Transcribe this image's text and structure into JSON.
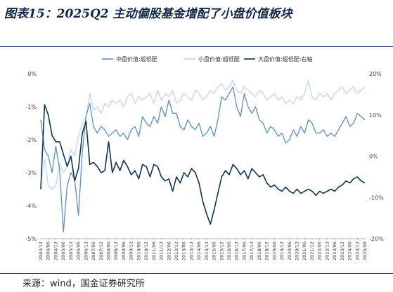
{
  "header": {
    "title": "图表15：2025Q2 主动偏股基金增配了小盘价值板块"
  },
  "footer": {
    "source": "来源：wind，国金证券研究所"
  },
  "colors": {
    "mid": "#5b8fc7",
    "small": "#c3d6ea",
    "large": "#0e3553",
    "rule": "#13294b"
  },
  "chart_data": {
    "type": "line",
    "legend_position": "top-center",
    "grid": false,
    "left_axis": {
      "ylim": [
        -5,
        0
      ],
      "ticks": [
        0,
        -1,
        -2,
        -3,
        -4,
        -5
      ],
      "tick_labels": [
        "0%",
        "-1%",
        "-2%",
        "-3%",
        "-4%",
        "-5%"
      ]
    },
    "right_axis": {
      "ylim": [
        -20,
        20
      ],
      "ticks": [
        20,
        10,
        0,
        -10,
        -20
      ],
      "tick_labels": [
        "20%",
        "10%",
        "0%",
        "-10%",
        "-20%"
      ]
    },
    "x_tick_labels": [
      "2003/12",
      "2004/06",
      "2004/12",
      "2005/06",
      "2005/12",
      "2006/06",
      "2006/12",
      "2007/06",
      "2007/12",
      "2008/06",
      "2008/12",
      "2009/06",
      "2009/12",
      "2010/06",
      "2010/12",
      "2011/06",
      "2011/12",
      "2012/06",
      "2012/12",
      "2013/06",
      "2013/12",
      "2014/06",
      "2014/12",
      "2015/06",
      "2015/12",
      "2016/06",
      "2016/12",
      "2017/06",
      "2017/12",
      "2018/06",
      "2018/12",
      "2019/06",
      "2019/12",
      "2020/06",
      "2020/12",
      "2021/06",
      "2021/12",
      "2022/06",
      "2022/12",
      "2023/06",
      "2023/12",
      "2024/06",
      "2024/12",
      "2025/06"
    ],
    "series": [
      {
        "name": "中盘价值:超低配",
        "axis": "left",
        "values": [
          -1.4,
          -2.3,
          -2.5,
          -3.0,
          -2.2,
          -2.9,
          -4.8,
          -3.4,
          -3.0,
          -3.2,
          -4.3,
          -2.4,
          -1.3,
          -0.9,
          -1.6,
          -1.8,
          -1.6,
          -1.7,
          -1.9,
          -1.8,
          -1.7,
          -1.9,
          -1.8,
          -2.0,
          -1.7,
          -1.6,
          -1.9,
          -1.3,
          -1.5,
          -1.6,
          -1.3,
          -1.5,
          -1.0,
          -1.3,
          -0.8,
          -1.2,
          -1.2,
          -1.6,
          -1.7,
          -1.4,
          -1.6,
          -1.7,
          -1.5,
          -1.9,
          -1.8,
          -1.6,
          -1.9,
          -1.4,
          -0.7,
          -0.8,
          -0.6,
          -0.4,
          -1.0,
          -1.3,
          -0.6,
          -1.0,
          -1.2,
          -1.0,
          -1.4,
          -1.5,
          -1.8,
          -1.6,
          -1.7,
          -1.9,
          -1.8,
          -2.1,
          -2.0,
          -1.7,
          -1.9,
          -1.6,
          -1.8,
          -1.4,
          -1.5,
          -1.8,
          -1.8,
          -1.7,
          -1.9,
          -1.8,
          -1.9,
          -1.7,
          -1.5,
          -1.3,
          -1.6,
          -1.5,
          -1.2,
          -1.3,
          -1.4
        ]
      },
      {
        "name": "小盘价值:超低配",
        "axis": "left",
        "values": [
          -3.3,
          -2.6,
          -3.4,
          -3.5,
          -3.4,
          -2.7,
          -3.0,
          -2.8,
          -2.3,
          -2.5,
          -1.9,
          -1.5,
          -1.3,
          -0.6,
          -1.1,
          -1.0,
          -1.2,
          -0.9,
          -1.0,
          -0.8,
          -0.9,
          -0.8,
          -1.0,
          -0.7,
          -0.6,
          -0.9,
          -0.7,
          -0.8,
          -0.7,
          -0.6,
          -0.9,
          -0.5,
          -0.8,
          -0.6,
          -0.7,
          -0.5,
          -0.9,
          -0.8,
          -0.6,
          -0.7,
          -0.8,
          -0.5,
          -0.6,
          -0.8,
          -0.7,
          -0.5,
          -0.6,
          -0.4,
          -0.3,
          -0.5,
          -0.4,
          -0.2,
          -0.5,
          -0.6,
          -0.4,
          -0.5,
          -0.6,
          -0.7,
          -0.5,
          -0.6,
          -0.8,
          -0.7,
          -0.6,
          -0.8,
          -0.7,
          -0.9,
          -0.8,
          -0.9,
          -0.7,
          -0.8,
          -0.6,
          -0.2,
          -0.7,
          -0.8,
          -0.6,
          -0.7,
          -0.6,
          -0.8,
          -0.6,
          -0.5,
          -0.4,
          -0.6,
          -0.5,
          -0.4,
          -0.6,
          -0.5,
          -0.4
        ]
      },
      {
        "name": "大盘价值:超低配:右轴",
        "axis": "right",
        "values": [
          -8.0,
          12.5,
          10.0,
          5.0,
          3.5,
          3.5,
          0.5,
          -2.5,
          0.0,
          -6.0,
          -3.0,
          5.5,
          8.5,
          -2.0,
          -1.5,
          -2.5,
          -4.0,
          -3.5,
          3.5,
          -4.0,
          -1.5,
          -3.5,
          -1.0,
          -2.5,
          -4.5,
          -3.5,
          -5.5,
          -2.0,
          -2.5,
          -5.0,
          -2.0,
          -2.5,
          -5.0,
          -6.0,
          -5.5,
          -8.5,
          -5.0,
          -6.5,
          -4.0,
          -5.0,
          -3.0,
          -4.0,
          -6.5,
          -11.0,
          -14.0,
          -16.5,
          -13.0,
          -9.0,
          -5.0,
          -3.5,
          -4.5,
          -2.0,
          -3.0,
          -4.5,
          -3.5,
          -5.5,
          -3.0,
          -4.0,
          -5.0,
          -4.5,
          -6.5,
          -7.5,
          -7.0,
          -8.0,
          -8.5,
          -7.5,
          -8.5,
          -9.0,
          -8.0,
          -9.0,
          -8.5,
          -8.0,
          -8.5,
          -9.5,
          -8.5,
          -9.0,
          -8.5,
          -8.0,
          -8.5,
          -7.5,
          -7.0,
          -6.0,
          -6.5,
          -5.5,
          -5.0,
          -6.0,
          -6.5
        ]
      }
    ]
  }
}
